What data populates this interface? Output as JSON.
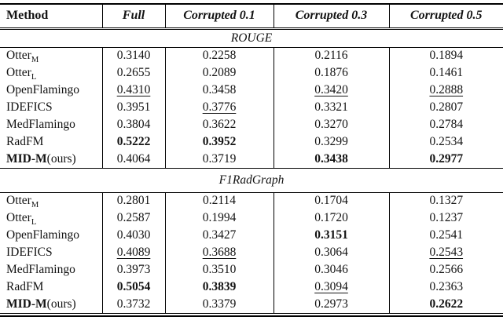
{
  "table": {
    "columns": [
      {
        "label": "Method",
        "style": "bold"
      },
      {
        "label": "Full",
        "style": "bold-italic"
      },
      {
        "label": "Corrupted 0.1",
        "style": "bold-italic"
      },
      {
        "label": "Corrupted 0.3",
        "style": "bold-italic"
      },
      {
        "label": "Corrupted 0.5",
        "style": "bold-italic"
      }
    ],
    "sections": [
      {
        "title": "ROUGE",
        "rows": [
          {
            "method": {
              "text": "Otter",
              "sub": "M",
              "bold": false,
              "suffix": ""
            },
            "values": [
              {
                "v": "0.3140",
                "fmt": "plain"
              },
              {
                "v": "0.2258",
                "fmt": "plain"
              },
              {
                "v": "0.2116",
                "fmt": "plain"
              },
              {
                "v": "0.1894",
                "fmt": "plain"
              }
            ]
          },
          {
            "method": {
              "text": "Otter",
              "sub": "L",
              "bold": false,
              "suffix": ""
            },
            "values": [
              {
                "v": "0.2655",
                "fmt": "plain"
              },
              {
                "v": "0.2089",
                "fmt": "plain"
              },
              {
                "v": "0.1876",
                "fmt": "plain"
              },
              {
                "v": "0.1461",
                "fmt": "plain"
              }
            ]
          },
          {
            "method": {
              "text": "OpenFlamingo",
              "sub": "",
              "bold": false,
              "suffix": ""
            },
            "values": [
              {
                "v": "0.4310",
                "fmt": "underline"
              },
              {
                "v": "0.3458",
                "fmt": "plain"
              },
              {
                "v": "0.3420",
                "fmt": "underline"
              },
              {
                "v": "0.2888",
                "fmt": "underline"
              }
            ]
          },
          {
            "method": {
              "text": "IDEFICS",
              "sub": "",
              "bold": false,
              "suffix": ""
            },
            "values": [
              {
                "v": "0.3951",
                "fmt": "plain"
              },
              {
                "v": "0.3776",
                "fmt": "underline"
              },
              {
                "v": "0.3321",
                "fmt": "plain"
              },
              {
                "v": "0.2807",
                "fmt": "plain"
              }
            ]
          },
          {
            "method": {
              "text": "MedFlamingo",
              "sub": "",
              "bold": false,
              "suffix": ""
            },
            "values": [
              {
                "v": "0.3804",
                "fmt": "plain"
              },
              {
                "v": "0.3622",
                "fmt": "plain"
              },
              {
                "v": "0.3270",
                "fmt": "plain"
              },
              {
                "v": "0.2784",
                "fmt": "plain"
              }
            ]
          },
          {
            "method": {
              "text": "RadFM",
              "sub": "",
              "bold": false,
              "suffix": ""
            },
            "values": [
              {
                "v": "0.5222",
                "fmt": "bold"
              },
              {
                "v": "0.3952",
                "fmt": "bold"
              },
              {
                "v": "0.3299",
                "fmt": "plain"
              },
              {
                "v": "0.2534",
                "fmt": "plain"
              }
            ]
          },
          {
            "method": {
              "text": "MID-M",
              "sub": "",
              "bold": true,
              "suffix": "(ours)"
            },
            "values": [
              {
                "v": "0.4064",
                "fmt": "plain"
              },
              {
                "v": "0.3719",
                "fmt": "plain"
              },
              {
                "v": "0.3438",
                "fmt": "bold"
              },
              {
                "v": "0.2977",
                "fmt": "bold"
              }
            ]
          }
        ]
      },
      {
        "title": "F1RadGraph",
        "rows": [
          {
            "method": {
              "text": "Otter",
              "sub": "M",
              "bold": false,
              "suffix": ""
            },
            "values": [
              {
                "v": "0.2801",
                "fmt": "plain"
              },
              {
                "v": "0.2114",
                "fmt": "plain"
              },
              {
                "v": "0.1704",
                "fmt": "plain"
              },
              {
                "v": "0.1327",
                "fmt": "plain"
              }
            ]
          },
          {
            "method": {
              "text": "Otter",
              "sub": "L",
              "bold": false,
              "suffix": ""
            },
            "values": [
              {
                "v": "0.2587",
                "fmt": "plain"
              },
              {
                "v": "0.1994",
                "fmt": "plain"
              },
              {
                "v": "0.1720",
                "fmt": "plain"
              },
              {
                "v": "0.1237",
                "fmt": "plain"
              }
            ]
          },
          {
            "method": {
              "text": "OpenFlamingo",
              "sub": "",
              "bold": false,
              "suffix": ""
            },
            "values": [
              {
                "v": "0.4030",
                "fmt": "plain"
              },
              {
                "v": "0.3427",
                "fmt": "plain"
              },
              {
                "v": "0.3151",
                "fmt": "bold"
              },
              {
                "v": "0.2541",
                "fmt": "plain"
              }
            ]
          },
          {
            "method": {
              "text": "IDEFICS",
              "sub": "",
              "bold": false,
              "suffix": ""
            },
            "values": [
              {
                "v": "0.4089",
                "fmt": "underline"
              },
              {
                "v": "0.3688",
                "fmt": "underline"
              },
              {
                "v": "0.3064",
                "fmt": "plain"
              },
              {
                "v": "0.2543",
                "fmt": "underline"
              }
            ]
          },
          {
            "method": {
              "text": "MedFlamingo",
              "sub": "",
              "bold": false,
              "suffix": ""
            },
            "values": [
              {
                "v": "0.3973",
                "fmt": "plain"
              },
              {
                "v": "0.3510",
                "fmt": "plain"
              },
              {
                "v": "0.3046",
                "fmt": "plain"
              },
              {
                "v": "0.2566",
                "fmt": "plain"
              }
            ]
          },
          {
            "method": {
              "text": "RadFM",
              "sub": "",
              "bold": false,
              "suffix": ""
            },
            "values": [
              {
                "v": "0.5054",
                "fmt": "bold"
              },
              {
                "v": "0.3839",
                "fmt": "bold"
              },
              {
                "v": "0.3094",
                "fmt": "underline"
              },
              {
                "v": "0.2363",
                "fmt": "plain"
              }
            ]
          },
          {
            "method": {
              "text": "MID-M",
              "sub": "",
              "bold": true,
              "suffix": "(ours)"
            },
            "values": [
              {
                "v": "0.3732",
                "fmt": "plain"
              },
              {
                "v": "0.3379",
                "fmt": "plain"
              },
              {
                "v": "0.2973",
                "fmt": "plain"
              },
              {
                "v": "0.2622",
                "fmt": "bold"
              }
            ]
          }
        ]
      }
    ]
  },
  "colors": {
    "text": "#131313",
    "rule": "#000000",
    "background": "#ffffff"
  }
}
